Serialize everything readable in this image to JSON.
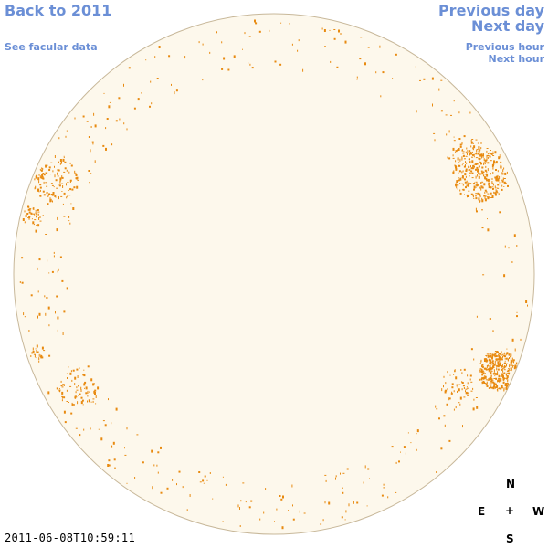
{
  "nav": {
    "back_label": "Back to 2011",
    "facular_label": "See facular data",
    "prev_day_label": "Previous day",
    "next_day_label": "Next day",
    "prev_hour_label": "Previous hour",
    "next_hour_label": "Next hour"
  },
  "timestamp": "2011-06-08T10:59:11",
  "compass": {
    "north": "N",
    "east": "E",
    "center": "+",
    "west": "W",
    "south": "S"
  },
  "colors": {
    "disk_fill": "#fdf8ec",
    "disk_stroke": "#c8b89a",
    "feature": "#e88a10",
    "link": "#6b8fd6"
  }
}
